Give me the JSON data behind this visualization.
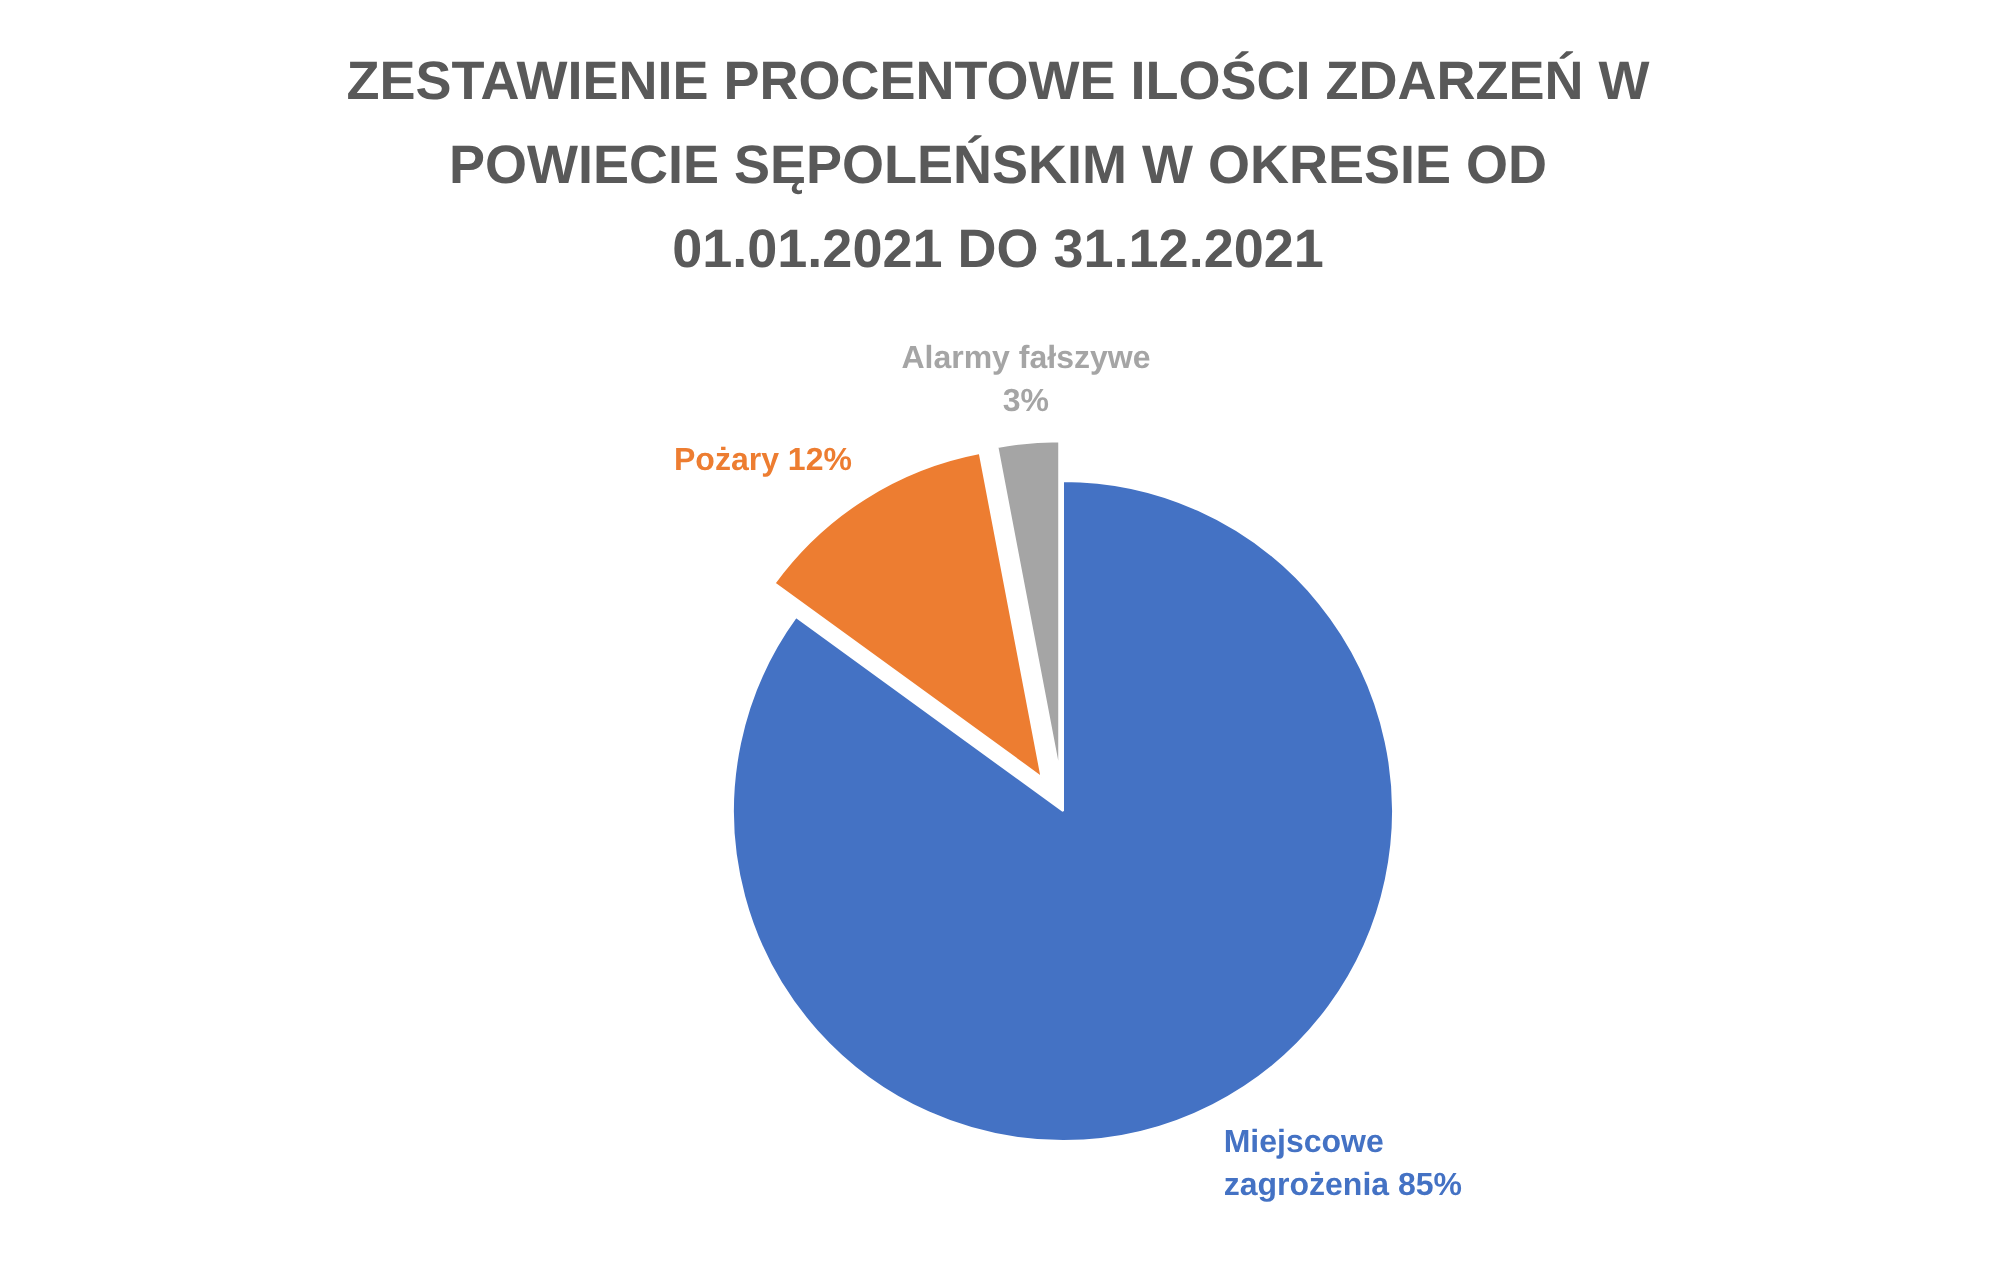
{
  "chart_data": {
    "type": "pie",
    "title": "ZESTAWIENIE PROCENTOWE ILOŚCI ZDARZEŃ W POWIECIE SĘPOLEŃSKIM W OKRESIE OD 01.01.2021 DO 31.12.2021",
    "categories": [
      "Miejscowe zagrożenia",
      "Pożary",
      "Alarmy fałszywe"
    ],
    "values": [
      85,
      12,
      3
    ],
    "colors": [
      "#4472c4",
      "#ed7d31",
      "#a5a5a5"
    ],
    "value_labels": [
      "85%",
      "12%",
      "3%"
    ]
  }
}
